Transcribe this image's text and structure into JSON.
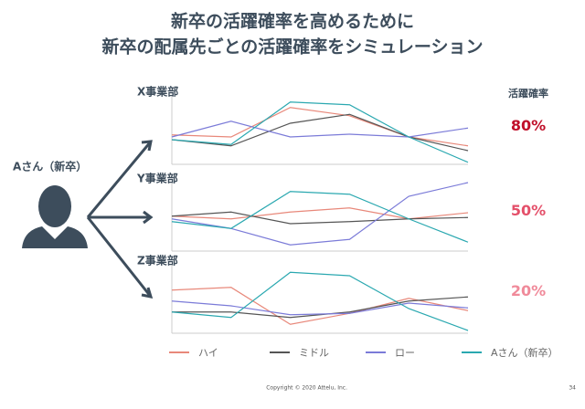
{
  "title": [
    "新卒の活躍確率を高めるために",
    "新卒の配属先ごとの活躍確率をシミュレーション"
  ],
  "person": "Aさん（新卒）",
  "probability_header": "活躍確率",
  "probabilities": [
    "80%",
    "50%",
    "20%"
  ],
  "probability_colors": [
    "#c0102a",
    "#e4506a",
    "#f08a9a"
  ],
  "chart_data": [
    {
      "type": "line",
      "title": "X事業部",
      "categories": [
        null,
        null,
        null,
        null,
        null,
        null
      ],
      "ylim": [
        0,
        10
      ],
      "series": [
        {
          "name": "ハイ",
          "color": "#e8887a",
          "values": [
            4.3,
            4,
            8.3,
            7.1,
            4,
            2.7
          ]
        },
        {
          "name": "ミドル",
          "color": "#555555",
          "values": [
            3.6,
            2.7,
            6,
            7.3,
            4,
            2
          ]
        },
        {
          "name": "ロー",
          "color": "#7b7bd8",
          "values": [
            4,
            6.3,
            4,
            4.4,
            4,
            5.3
          ]
        },
        {
          "name": "Aさん（新卒）",
          "color": "#2aa8b0",
          "values": [
            3.6,
            2.9,
            9.1,
            8.7,
            4,
            0.3
          ]
        }
      ]
    },
    {
      "type": "line",
      "title": "Y事業部",
      "categories": [
        null,
        null,
        null,
        null,
        null,
        null
      ],
      "ylim": [
        0,
        10
      ],
      "series": [
        {
          "name": "ハイ",
          "color": "#e8887a",
          "values": [
            5.1,
            4.7,
            5.7,
            6.3,
            4.7,
            5.6
          ]
        },
        {
          "name": "ミドル",
          "color": "#555555",
          "values": [
            5.1,
            5.7,
            4,
            4.3,
            4.7,
            4.9
          ]
        },
        {
          "name": "ロー",
          "color": "#7b7bd8",
          "values": [
            4.7,
            3.3,
            0.9,
            1.7,
            8,
            10
          ]
        },
        {
          "name": "Aさん（新卒）",
          "color": "#2aa8b0",
          "values": [
            4.3,
            3.3,
            8.7,
            8.3,
            4.7,
            1.3
          ]
        }
      ]
    },
    {
      "type": "line",
      "title": "Z事業部",
      "categories": [
        null,
        null,
        null,
        null,
        null,
        null
      ],
      "ylim": [
        0,
        10
      ],
      "series": [
        {
          "name": "ハイ",
          "color": "#e8887a",
          "values": [
            6.3,
            6.7,
            1.3,
            2.9,
            5.1,
            3.3
          ]
        },
        {
          "name": "ミドル",
          "color": "#555555",
          "values": [
            3.1,
            3.1,
            2.3,
            3.1,
            4.7,
            5.3
          ]
        },
        {
          "name": "ロー",
          "color": "#7b7bd8",
          "values": [
            4.7,
            4,
            2.7,
            2.9,
            4.4,
            3.7
          ]
        },
        {
          "name": "Aさん（新卒）",
          "color": "#2aa8b0",
          "values": [
            3.1,
            2.3,
            8.9,
            8.4,
            3.6,
            0.4
          ]
        }
      ]
    }
  ],
  "footer": {
    "copyright": "Copyright © 2020 Attelu, Inc.",
    "page": "34"
  }
}
